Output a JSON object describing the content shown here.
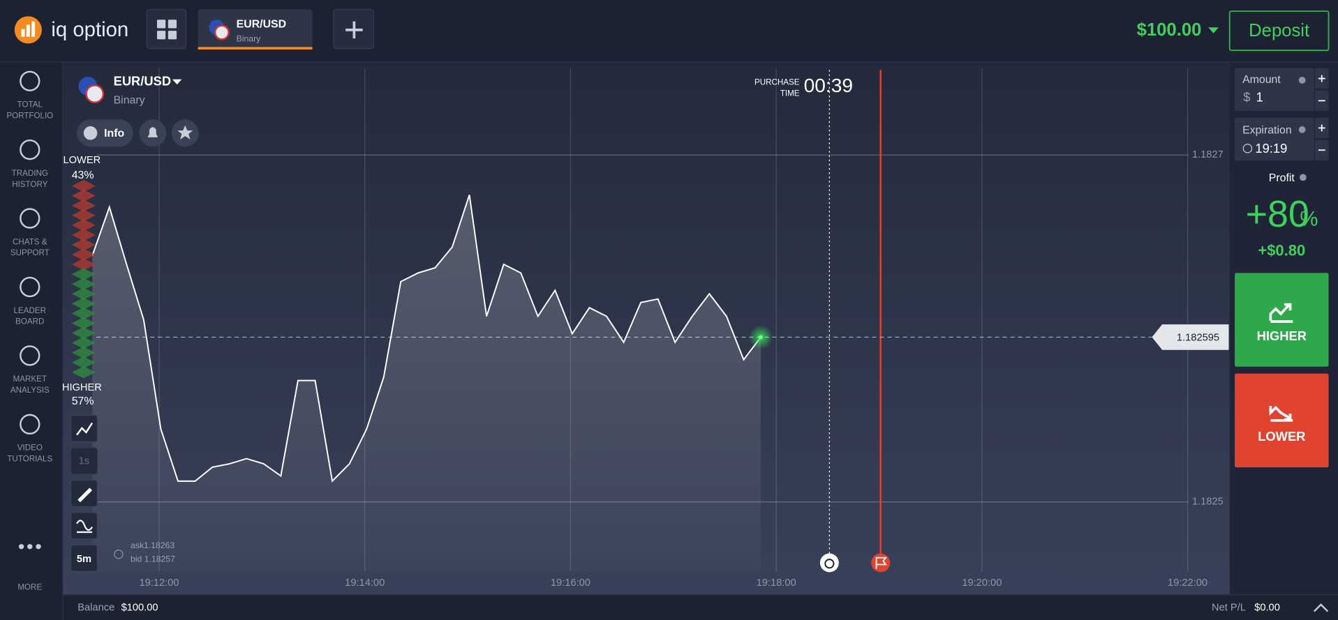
{
  "header": {
    "logo": "iq option",
    "tab_pair": "EUR/USD",
    "tab_type": "Binary",
    "balance": "$100.00",
    "deposit": "Deposit"
  },
  "sidebar": [
    {
      "lines": [
        "TOTAL",
        "PORTFOLIO"
      ]
    },
    {
      "lines": [
        "TRADING",
        "HISTORY"
      ]
    },
    {
      "lines": [
        "CHATS &",
        "SUPPORT"
      ]
    },
    {
      "lines": [
        "LEADER",
        "BOARD"
      ]
    },
    {
      "lines": [
        "MARKET",
        "ANALYSIS"
      ]
    },
    {
      "lines": [
        "VIDEO",
        "TUTORIALS"
      ]
    },
    {
      "lines": [
        "MORE"
      ]
    }
  ],
  "asset": {
    "pair": "EUR/USD",
    "type": "Binary",
    "info": "Info"
  },
  "purchase": {
    "label_1": "PURCHASE",
    "label_2": "TIME",
    "countdown": "00:39"
  },
  "sentiment": {
    "lower_label": "LOWER",
    "lower": "43%",
    "higher_label": "HIGHER",
    "higher": "57%"
  },
  "tools": {
    "tick": "1s",
    "period": "5m"
  },
  "quote": {
    "ask": "ask1.18263",
    "bid": "bid 1.18257"
  },
  "chart_data": {
    "type": "line",
    "x": [
      "19:11:21",
      "19:11:31",
      "19:11:41",
      "19:11:51",
      "19:12:01",
      "19:12:11",
      "19:12:21",
      "19:12:31",
      "19:12:41",
      "19:12:51",
      "19:13:01",
      "19:13:11",
      "19:13:21",
      "19:13:31",
      "19:13:41",
      "19:13:51",
      "19:14:01",
      "19:14:11",
      "19:14:21",
      "19:14:31",
      "19:14:41",
      "19:14:51",
      "19:15:01",
      "19:15:11",
      "19:15:21",
      "19:15:31",
      "19:15:41",
      "19:15:51",
      "19:16:01",
      "19:16:11",
      "19:16:21",
      "19:16:31",
      "19:16:41",
      "19:16:51",
      "19:17:01",
      "19:17:11",
      "19:17:21",
      "19:17:31",
      "19:17:41",
      "19:17:51"
    ],
    "values": [
      1.182642,
      1.18267,
      1.182637,
      1.182605,
      1.182542,
      1.182512,
      1.182512,
      1.18252,
      1.182522,
      1.182525,
      1.182522,
      1.182515,
      1.18257,
      1.18257,
      1.182512,
      1.182522,
      1.182542,
      1.182572,
      1.182627,
      1.182632,
      1.182635,
      1.182647,
      1.182677,
      1.182607,
      1.182637,
      1.182632,
      1.182607,
      1.182622,
      1.182597,
      1.182612,
      1.182607,
      1.182592,
      1.182615,
      1.182617,
      1.182592,
      1.182607,
      1.18262,
      1.182607,
      1.182582,
      1.182595
    ],
    "color": "#ffffff",
    "xlim": [
      "19:11:04",
      "19:22:24"
    ],
    "xticks": [
      "19:12:00",
      "19:14:00",
      "19:16:00",
      "19:18:00",
      "19:20:00",
      "19:22:00"
    ],
    "ylim": [
      1.18246,
      1.18275
    ],
    "yticks": [
      1.1827,
      1.1825
    ],
    "current_price": 1.182595,
    "grid": true
  },
  "trade": {
    "amount_label": "Amount",
    "currency": "$",
    "amount": "1",
    "expiration_label": "Expiration",
    "expiration": "19:19",
    "profit_label": "Profit",
    "profit_pct": "+80",
    "pct_sign": "%",
    "profit_amount": "+$0.80",
    "higher": "HIGHER",
    "lower": "LOWER"
  },
  "footer": {
    "balance_label": "Balance",
    "balance": "$100.00",
    "pnl_label": "Net P/L",
    "pnl": "$0.00"
  }
}
